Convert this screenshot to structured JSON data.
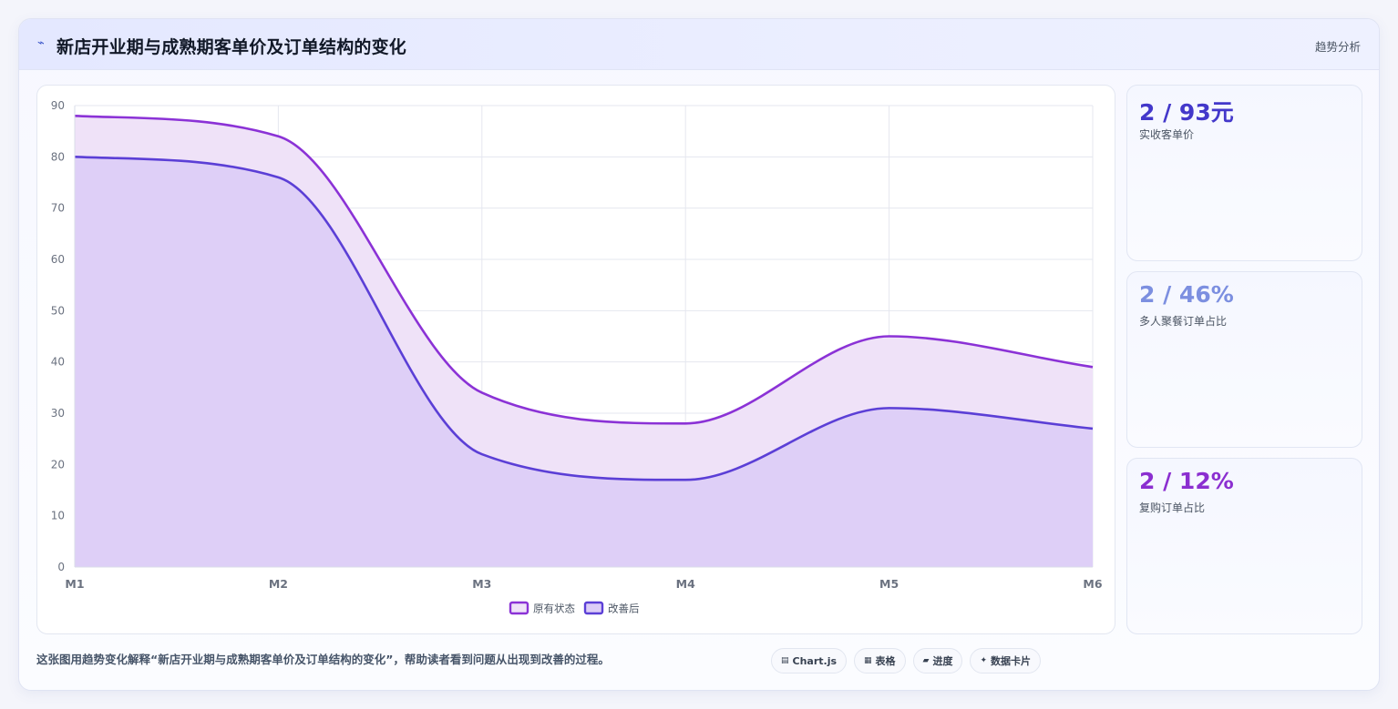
{
  "header": {
    "icon": "trend-line-icon",
    "title": "新店开业期与成熟期客单价及订单结构的变化",
    "tag": "趋势分析"
  },
  "kpis": [
    {
      "value": "2 / 93元",
      "label": "实收客单价",
      "color": "#4338ca"
    },
    {
      "value": "2 / 46%",
      "label": "多人聚餐订单占比",
      "color": "#7c8fe0"
    },
    {
      "value": "2 / 12%",
      "label": "复购订单占比",
      "color": "#8b2fd0"
    }
  ],
  "footer": {
    "text": "这张图用趋势变化解释“新店开业期与成熟期客单价及订单结构的变化”，帮助读者看到问题从出现到改善的过程。",
    "pills": [
      {
        "icon": "chart-icon",
        "glyph": "▤",
        "label": "Chart.js"
      },
      {
        "icon": "table-icon",
        "glyph": "▦",
        "label": "表格"
      },
      {
        "icon": "progress-icon",
        "glyph": "▰",
        "label": "进度"
      },
      {
        "icon": "card-icon",
        "glyph": "✦",
        "label": "数据卡片"
      }
    ]
  },
  "chart_data": {
    "type": "area",
    "categories": [
      "M1",
      "M2",
      "M3",
      "M4",
      "M5",
      "M6"
    ],
    "ylim": [
      0,
      90
    ],
    "yticks": [
      0,
      10,
      20,
      30,
      40,
      50,
      60,
      70,
      80,
      90
    ],
    "grid": true,
    "legend_position": "bottom",
    "series": [
      {
        "name": "原有状态",
        "values": [
          88,
          84,
          34,
          28,
          45,
          39
        ],
        "color": "#8b32d6",
        "fill": "#efe2f8"
      },
      {
        "name": "改善后",
        "values": [
          80,
          76,
          22,
          17,
          31,
          27
        ],
        "color": "#5b3fd6",
        "fill": "#dccdf7"
      }
    ]
  }
}
